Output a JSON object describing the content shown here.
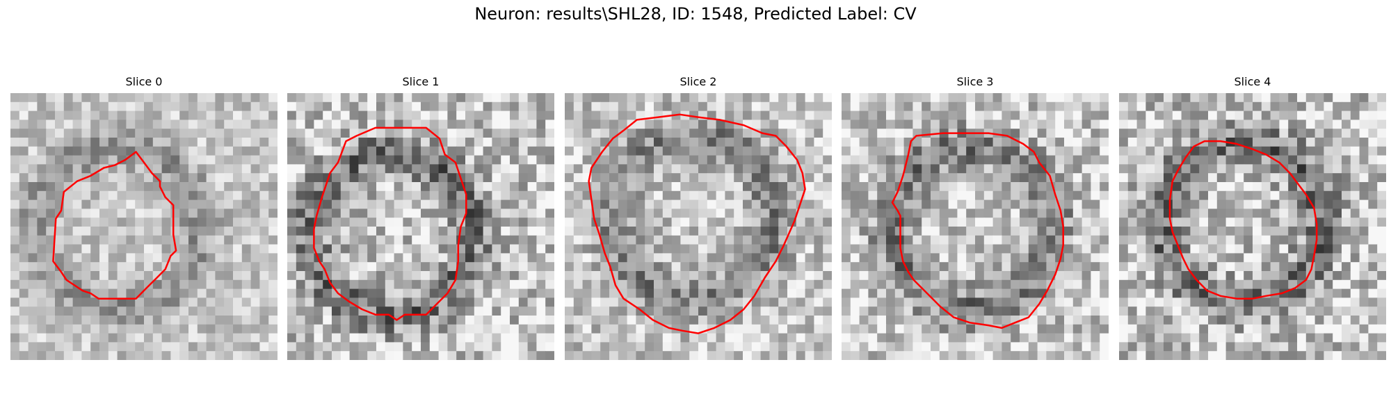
{
  "figure": {
    "title": "Neuron: results\\SHL28, ID: 1548, Predicted Label: CV"
  },
  "outline_color": "#ff0000",
  "panels": [
    {
      "title": "Slice 0",
      "seed": 11,
      "grid": 30,
      "contrast": 0.35,
      "outline": [
        [
          0.47,
          0.22
        ],
        [
          0.43,
          0.25
        ],
        [
          0.39,
          0.27
        ],
        [
          0.35,
          0.28
        ],
        [
          0.3,
          0.31
        ],
        [
          0.25,
          0.33
        ],
        [
          0.2,
          0.37
        ],
        [
          0.19,
          0.44
        ],
        [
          0.17,
          0.47
        ],
        [
          0.16,
          0.63
        ],
        [
          0.19,
          0.67
        ],
        [
          0.21,
          0.7
        ],
        [
          0.24,
          0.72
        ],
        [
          0.27,
          0.74
        ],
        [
          0.3,
          0.75
        ],
        [
          0.33,
          0.77
        ],
        [
          0.47,
          0.77
        ],
        [
          0.51,
          0.73
        ],
        [
          0.55,
          0.69
        ],
        [
          0.58,
          0.66
        ],
        [
          0.6,
          0.61
        ],
        [
          0.62,
          0.59
        ],
        [
          0.61,
          0.53
        ],
        [
          0.61,
          0.42
        ],
        [
          0.58,
          0.39
        ],
        [
          0.56,
          0.35
        ],
        [
          0.56,
          0.33
        ],
        [
          0.53,
          0.3
        ],
        [
          0.5,
          0.26
        ]
      ]
    },
    {
      "title": "Slice 1",
      "seed": 23,
      "grid": 30,
      "contrast": 0.55,
      "outline": [
        [
          0.33,
          0.13
        ],
        [
          0.26,
          0.16
        ],
        [
          0.22,
          0.18
        ],
        [
          0.19,
          0.26
        ],
        [
          0.16,
          0.3
        ],
        [
          0.13,
          0.39
        ],
        [
          0.11,
          0.46
        ],
        [
          0.1,
          0.51
        ],
        [
          0.1,
          0.58
        ],
        [
          0.12,
          0.63
        ],
        [
          0.14,
          0.66
        ],
        [
          0.16,
          0.71
        ],
        [
          0.19,
          0.75
        ],
        [
          0.23,
          0.78
        ],
        [
          0.28,
          0.81
        ],
        [
          0.33,
          0.83
        ],
        [
          0.38,
          0.83
        ],
        [
          0.41,
          0.85
        ],
        [
          0.44,
          0.83
        ],
        [
          0.52,
          0.83
        ],
        [
          0.56,
          0.79
        ],
        [
          0.6,
          0.75
        ],
        [
          0.63,
          0.7
        ],
        [
          0.64,
          0.63
        ],
        [
          0.64,
          0.57
        ],
        [
          0.65,
          0.5
        ],
        [
          0.67,
          0.45
        ],
        [
          0.67,
          0.38
        ],
        [
          0.65,
          0.32
        ],
        [
          0.63,
          0.26
        ],
        [
          0.59,
          0.23
        ],
        [
          0.57,
          0.17
        ],
        [
          0.52,
          0.13
        ]
      ]
    },
    {
      "title": "Slice 2",
      "seed": 37,
      "grid": 30,
      "contrast": 0.45,
      "outline": [
        [
          0.35,
          0.09
        ],
        [
          0.27,
          0.1
        ],
        [
          0.22,
          0.14
        ],
        [
          0.18,
          0.17
        ],
        [
          0.14,
          0.22
        ],
        [
          0.1,
          0.28
        ],
        [
          0.09,
          0.33
        ],
        [
          0.1,
          0.4
        ],
        [
          0.11,
          0.47
        ],
        [
          0.13,
          0.53
        ],
        [
          0.15,
          0.6
        ],
        [
          0.17,
          0.65
        ],
        [
          0.19,
          0.72
        ],
        [
          0.22,
          0.77
        ],
        [
          0.28,
          0.81
        ],
        [
          0.33,
          0.85
        ],
        [
          0.39,
          0.88
        ],
        [
          0.44,
          0.89
        ],
        [
          0.5,
          0.9
        ],
        [
          0.56,
          0.88
        ],
        [
          0.62,
          0.85
        ],
        [
          0.67,
          0.81
        ],
        [
          0.71,
          0.76
        ],
        [
          0.75,
          0.69
        ],
        [
          0.79,
          0.63
        ],
        [
          0.82,
          0.57
        ],
        [
          0.86,
          0.48
        ],
        [
          0.88,
          0.42
        ],
        [
          0.9,
          0.36
        ],
        [
          0.89,
          0.3
        ],
        [
          0.87,
          0.25
        ],
        [
          0.83,
          0.2
        ],
        [
          0.79,
          0.16
        ],
        [
          0.74,
          0.15
        ],
        [
          0.67,
          0.12
        ],
        [
          0.58,
          0.1
        ],
        [
          0.5,
          0.09
        ],
        [
          0.43,
          0.08
        ]
      ]
    },
    {
      "title": "Slice 3",
      "seed": 51,
      "grid": 30,
      "contrast": 0.5,
      "outline": [
        [
          0.28,
          0.16
        ],
        [
          0.26,
          0.18
        ],
        [
          0.25,
          0.23
        ],
        [
          0.24,
          0.27
        ],
        [
          0.23,
          0.31
        ],
        [
          0.21,
          0.37
        ],
        [
          0.19,
          0.41
        ],
        [
          0.21,
          0.44
        ],
        [
          0.22,
          0.46
        ],
        [
          0.22,
          0.52
        ],
        [
          0.22,
          0.58
        ],
        [
          0.23,
          0.63
        ],
        [
          0.25,
          0.67
        ],
        [
          0.27,
          0.7
        ],
        [
          0.3,
          0.73
        ],
        [
          0.33,
          0.76
        ],
        [
          0.37,
          0.8
        ],
        [
          0.42,
          0.84
        ],
        [
          0.48,
          0.86
        ],
        [
          0.55,
          0.87
        ],
        [
          0.6,
          0.88
        ],
        [
          0.65,
          0.86
        ],
        [
          0.7,
          0.84
        ],
        [
          0.74,
          0.79
        ],
        [
          0.77,
          0.74
        ],
        [
          0.8,
          0.68
        ],
        [
          0.82,
          0.62
        ],
        [
          0.83,
          0.57
        ],
        [
          0.83,
          0.5
        ],
        [
          0.82,
          0.44
        ],
        [
          0.8,
          0.38
        ],
        [
          0.78,
          0.31
        ],
        [
          0.74,
          0.26
        ],
        [
          0.72,
          0.22
        ],
        [
          0.68,
          0.19
        ],
        [
          0.62,
          0.16
        ],
        [
          0.55,
          0.15
        ],
        [
          0.47,
          0.15
        ],
        [
          0.38,
          0.15
        ]
      ]
    },
    {
      "title": "Slice 4",
      "seed": 67,
      "grid": 30,
      "contrast": 0.55,
      "outline": [
        [
          0.28,
          0.2
        ],
        [
          0.25,
          0.24
        ],
        [
          0.22,
          0.29
        ],
        [
          0.2,
          0.33
        ],
        [
          0.19,
          0.4
        ],
        [
          0.19,
          0.47
        ],
        [
          0.2,
          0.52
        ],
        [
          0.22,
          0.57
        ],
        [
          0.24,
          0.62
        ],
        [
          0.26,
          0.66
        ],
        [
          0.29,
          0.7
        ],
        [
          0.33,
          0.74
        ],
        [
          0.38,
          0.76
        ],
        [
          0.44,
          0.77
        ],
        [
          0.5,
          0.77
        ],
        [
          0.55,
          0.76
        ],
        [
          0.61,
          0.75
        ],
        [
          0.66,
          0.73
        ],
        [
          0.7,
          0.7
        ],
        [
          0.72,
          0.66
        ],
        [
          0.73,
          0.61
        ],
        [
          0.74,
          0.55
        ],
        [
          0.74,
          0.49
        ],
        [
          0.73,
          0.43
        ],
        [
          0.7,
          0.38
        ],
        [
          0.67,
          0.34
        ],
        [
          0.64,
          0.3
        ],
        [
          0.6,
          0.26
        ],
        [
          0.55,
          0.23
        ],
        [
          0.5,
          0.21
        ],
        [
          0.44,
          0.19
        ],
        [
          0.38,
          0.18
        ],
        [
          0.32,
          0.18
        ]
      ]
    }
  ]
}
